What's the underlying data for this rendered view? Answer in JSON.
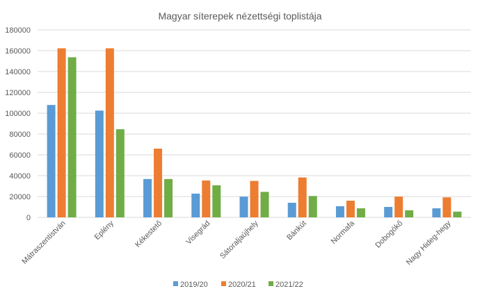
{
  "chart_data": {
    "type": "bar",
    "title": "Magyar síterepek nézettségi toplistája",
    "xlabel": "",
    "ylabel": "",
    "ylim": [
      0,
      180000
    ],
    "yticks": [
      "0",
      "20000",
      "40000",
      "60000",
      "80000",
      "100000",
      "120000",
      "140000",
      "160000",
      "180000"
    ],
    "grid": true,
    "legend_position": "bottom",
    "categories": [
      "Mátraszentistván",
      "Eplény",
      "Kékestető",
      "Visegrád",
      "Sátoraljaújhely",
      "Bánkút",
      "Normafa",
      "Dobogókő",
      "Nagy Hideg-hegy"
    ],
    "series": [
      {
        "name": "2019/20",
        "color": "#5B9BD5",
        "values": [
          107900,
          102500,
          36800,
          22800,
          19900,
          14000,
          10700,
          10000,
          8700
        ]
      },
      {
        "name": "2020/21",
        "color": "#ED7D31",
        "values": [
          162300,
          162300,
          66000,
          35400,
          35000,
          38300,
          16000,
          19900,
          19200
        ]
      },
      {
        "name": "2021/22",
        "color": "#70AD47",
        "values": [
          153700,
          84600,
          36800,
          30800,
          24500,
          20500,
          8700,
          6800,
          5500
        ]
      }
    ]
  }
}
